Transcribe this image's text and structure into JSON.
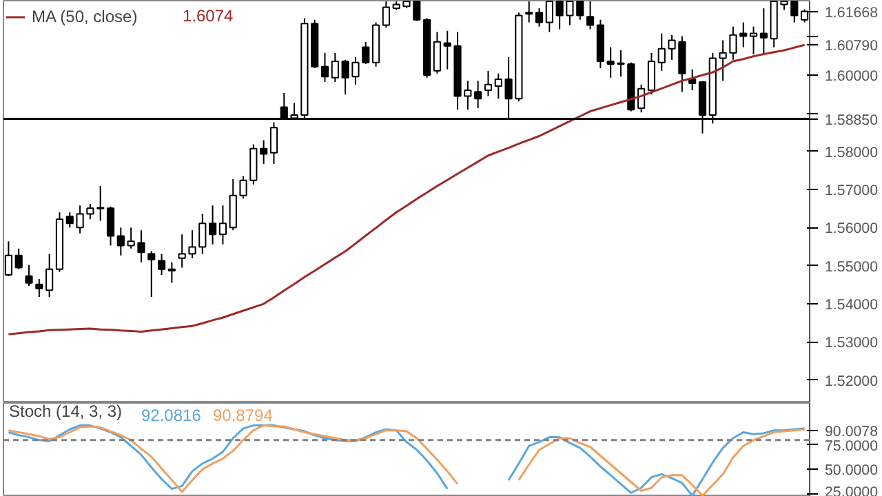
{
  "chart_data": [
    {
      "type": "candlestick",
      "categories": [
        null,
        null,
        null,
        null,
        null,
        null,
        null,
        null,
        null,
        null,
        null,
        null,
        null,
        null,
        null,
        null,
        null,
        null,
        null,
        null,
        null,
        null,
        null,
        null,
        null,
        null,
        null,
        null,
        null,
        null,
        null,
        null,
        null,
        null,
        null,
        null,
        null,
        null,
        null,
        null,
        null,
        null,
        null,
        null,
        null,
        null,
        null,
        null,
        null,
        null,
        null,
        null,
        null,
        null,
        null,
        null,
        null,
        null,
        null,
        null,
        null,
        null,
        null,
        null,
        null,
        null,
        null,
        null,
        null,
        null,
        null,
        null,
        null,
        null,
        null,
        null,
        null,
        null,
        null
      ],
      "ohlc": [
        [
          1.5476,
          1.5564,
          1.5473,
          1.5527
        ],
        [
          1.5527,
          1.5545,
          1.5491,
          1.5495
        ],
        [
          1.5473,
          1.5502,
          1.5447,
          1.5455
        ],
        [
          1.5451,
          1.5465,
          1.5418,
          1.544
        ],
        [
          1.5436,
          1.5531,
          1.5418,
          1.5491
        ],
        [
          1.5491,
          1.564,
          1.5484,
          1.5622
        ],
        [
          1.5629,
          1.564,
          1.56,
          1.5611
        ],
        [
          1.56,
          1.5658,
          1.5585,
          1.5636
        ],
        [
          1.5636,
          1.5662,
          1.5622,
          1.5651
        ],
        [
          1.5652,
          1.5709,
          1.5618,
          1.565
        ],
        [
          1.5651,
          1.5655,
          1.5553,
          1.5578
        ],
        [
          1.5578,
          1.56,
          1.5527,
          1.5553
        ],
        [
          1.5553,
          1.56,
          1.5545,
          1.5564
        ],
        [
          1.556,
          1.5593,
          1.5509,
          1.5535
        ],
        [
          1.5531,
          1.5538,
          1.5418,
          1.5516
        ],
        [
          1.5513,
          1.5531,
          1.5476,
          1.5491
        ],
        [
          1.5491,
          1.5509,
          1.5455,
          1.5487
        ],
        [
          1.552,
          1.5582,
          1.5495,
          1.5531
        ],
        [
          1.5531,
          1.5593,
          1.552,
          1.5549
        ],
        [
          1.5549,
          1.5636,
          1.5531,
          1.5611
        ],
        [
          1.5611,
          1.5658,
          1.5556,
          1.5582
        ],
        [
          1.5582,
          1.5658,
          1.5556,
          1.5611
        ],
        [
          1.56,
          1.5727,
          1.5593,
          1.5684
        ],
        [
          1.5684,
          1.5735,
          1.5676,
          1.5724
        ],
        [
          1.5724,
          1.5818,
          1.5713,
          1.5807
        ],
        [
          1.5807,
          1.5829,
          1.5767,
          1.5793
        ],
        [
          1.5796,
          1.5876,
          1.5767,
          1.5862
        ],
        [
          1.5916,
          1.5953,
          1.5884,
          1.5887
        ],
        [
          1.5887,
          1.5927,
          1.5884,
          1.5895
        ],
        [
          1.5895,
          1.6149,
          1.5884,
          1.6135
        ],
        [
          1.6135,
          1.6145,
          1.6018,
          1.6022
        ],
        [
          1.6022,
          1.6058,
          1.5982,
          1.5996
        ],
        [
          1.5993,
          1.6058,
          1.5982,
          1.6036
        ],
        [
          1.6036,
          1.604,
          1.5949,
          1.5993
        ],
        [
          1.5996,
          1.6047,
          1.5975,
          1.6033
        ],
        [
          1.6073,
          1.6087,
          1.6029,
          1.6033
        ],
        [
          1.6033,
          1.6138,
          1.6022,
          1.6131
        ],
        [
          1.6131,
          1.6193,
          1.6124,
          1.6178
        ],
        [
          1.6175,
          1.6193,
          1.6171,
          1.6185
        ],
        [
          1.618,
          1.6193,
          1.6175,
          1.6193
        ],
        [
          1.6193,
          1.6193,
          1.6142,
          1.6145
        ],
        [
          1.6145,
          1.6149,
          1.5993,
          1.6
        ],
        [
          1.6011,
          1.6113,
          1.6004,
          1.6087
        ],
        [
          1.6084,
          1.6116,
          1.6015,
          1.6076
        ],
        [
          1.6076,
          1.6113,
          1.5909,
          1.5945
        ],
        [
          1.5945,
          1.5985,
          1.5909,
          1.596
        ],
        [
          1.5956,
          1.5985,
          1.5913,
          1.5938
        ],
        [
          1.596,
          1.6011,
          1.5945,
          1.5975
        ],
        [
          1.5971,
          1.6004,
          1.5938,
          1.5989
        ],
        [
          1.5989,
          1.6047,
          1.5884,
          1.5938
        ],
        [
          1.5938,
          1.6164,
          1.5931,
          1.6156
        ],
        [
          1.6164,
          1.6193,
          1.6138,
          1.616
        ],
        [
          1.6164,
          1.6175,
          1.6127,
          1.6138
        ],
        [
          1.6138,
          1.6193,
          1.6113,
          1.6193
        ],
        [
          1.6193,
          1.6193,
          1.612,
          1.6156
        ],
        [
          1.6156,
          1.6193,
          1.6131,
          1.6193
        ],
        [
          1.6193,
          1.6193,
          1.6145,
          1.6156
        ],
        [
          1.6153,
          1.6193,
          1.612,
          1.6131
        ],
        [
          1.6131,
          1.6145,
          1.6018,
          1.6036
        ],
        [
          1.6036,
          1.6073,
          1.5993,
          1.6029
        ],
        [
          1.6029,
          1.6065,
          1.5996,
          1.6031
        ],
        [
          1.6029,
          1.6033,
          1.5905,
          1.5909
        ],
        [
          1.5913,
          1.5975,
          1.5902,
          1.5964
        ],
        [
          1.596,
          1.6058,
          1.5949,
          1.6036
        ],
        [
          1.6033,
          1.6109,
          1.6011,
          1.6069
        ],
        [
          1.6069,
          1.6105,
          1.604,
          1.6091
        ],
        [
          1.6087,
          1.6102,
          1.5956,
          1.6004
        ],
        [
          1.5989,
          1.6015,
          1.596,
          1.5978
        ],
        [
          1.5982,
          1.5982,
          1.5847,
          1.5895
        ],
        [
          1.5895,
          1.6058,
          1.5873,
          1.6044
        ],
        [
          1.6044,
          1.6091,
          1.5985,
          1.6058
        ],
        [
          1.6058,
          1.6127,
          1.604,
          1.6105
        ],
        [
          1.6109,
          1.6138,
          1.6073,
          1.6102
        ],
        [
          1.6102,
          1.6127,
          1.6055,
          1.6109
        ],
        [
          1.6109,
          1.6175,
          1.6055,
          1.6098
        ],
        [
          1.6095,
          1.6193,
          1.6073,
          1.6193
        ],
        [
          1.6185,
          1.6193,
          1.6171,
          1.6193
        ],
        [
          1.6193,
          1.6193,
          1.6138,
          1.6156
        ],
        [
          1.6145,
          1.6172,
          1.6138,
          1.6167
        ]
      ],
      "series": [
        {
          "type": "line",
          "name": "MA (50, close)",
          "color": "#a02828",
          "values": [
            1.532,
            1.5323,
            1.5326,
            1.5328,
            1.5331,
            1.5332,
            1.5333,
            1.5334,
            1.5335,
            1.5333,
            1.5332,
            1.533,
            1.5329,
            1.5327,
            1.533,
            1.5333,
            1.5336,
            1.5339,
            1.5342,
            1.5349,
            1.5357,
            1.5364,
            1.5373,
            1.5382,
            1.5391,
            1.54,
            1.5417,
            1.5435,
            1.5452,
            1.547,
            1.5487,
            1.5504,
            1.5521,
            1.5538,
            1.5558,
            1.5579,
            1.5599,
            1.562,
            1.564,
            1.5657,
            1.5675,
            1.5692,
            1.5709,
            1.5725,
            1.5741,
            1.5757,
            1.5773,
            1.5789,
            1.5799,
            1.5809,
            1.582,
            1.583,
            1.584,
            1.5853,
            1.5866,
            1.5879,
            1.5892,
            1.5905,
            1.5913,
            1.5921,
            1.5929,
            1.5937,
            1.5945,
            1.5955,
            1.5965,
            1.5975,
            1.5985,
            1.5992,
            1.6,
            1.6007,
            1.602,
            1.6036,
            1.6042,
            1.6049,
            1.6055,
            1.606,
            1.6065,
            1.6072,
            1.6079
          ]
        }
      ],
      "ylim": [
        1.514,
        1.6195
      ],
      "yticks": [
        {
          "value": 1.52,
          "label": "1.52000"
        },
        {
          "value": 1.53,
          "label": "1.53000"
        },
        {
          "value": 1.54,
          "label": "1.54000"
        },
        {
          "value": 1.55,
          "label": "1.55000"
        },
        {
          "value": 1.56,
          "label": "1.56000"
        },
        {
          "value": 1.57,
          "label": "1.57000"
        },
        {
          "value": 1.58,
          "label": "1.58000"
        },
        {
          "value": 1.59,
          "label": null
        },
        {
          "value": 1.6,
          "label": "1.60000"
        },
        {
          "value": 1.6079,
          "label": "1.60790"
        },
        {
          "value": 1.61,
          "label": null
        },
        {
          "value": 1.61668,
          "label": "1.61668"
        }
      ],
      "ref_lines": [
        {
          "axis": "y",
          "value": 1.5885,
          "label": "1.58850",
          "color": "#000000"
        }
      ],
      "annotations": [
        "1.6074"
      ],
      "tick_labels": "y",
      "grid": false,
      "legend": "top left"
    },
    {
      "type": "line",
      "title": "Stoch (14, 3, 3)",
      "categories": [
        null,
        null,
        null,
        null,
        null,
        null,
        null,
        null,
        null,
        null,
        null,
        null,
        null,
        null,
        null,
        null,
        null,
        null,
        null,
        null,
        null,
        null,
        null,
        null,
        null,
        null,
        null,
        null,
        null,
        null,
        null,
        null,
        null,
        null,
        null,
        null,
        null,
        null,
        null,
        null,
        null,
        null,
        null,
        null,
        null,
        null,
        null,
        null,
        null,
        null,
        null,
        null,
        null,
        null,
        null,
        null,
        null,
        null,
        null,
        null,
        null,
        null,
        null,
        null,
        null,
        null,
        null,
        null,
        null,
        null,
        null,
        null,
        null,
        null,
        null,
        null,
        null,
        null,
        null
      ],
      "series": [
        {
          "color": "#5aa7dc",
          "values": [
            88,
            85,
            83,
            80,
            79,
            85,
            91,
            95,
            95,
            92,
            88,
            83,
            74,
            65,
            52,
            40,
            30,
            33,
            48,
            56,
            61,
            68,
            82,
            92,
            95,
            95,
            95,
            93,
            91,
            89,
            85,
            82,
            80,
            79,
            79,
            83,
            88,
            91,
            90,
            78,
            70,
            59,
            46,
            30,
            null,
            null,
            null,
            null,
            null,
            39,
            56,
            74,
            78,
            83,
            83,
            77,
            72,
            63,
            53,
            44,
            35,
            26,
            31,
            42,
            45,
            41,
            36,
            23,
            40,
            57,
            72,
            82,
            88,
            86,
            87,
            90,
            90,
            91,
            92
          ]
        },
        {
          "color": "#f0a060",
          "values": [
            90,
            88,
            86,
            84,
            81,
            83,
            88,
            93,
            94,
            93,
            89,
            85,
            80,
            71,
            63,
            51,
            39,
            27,
            39,
            50,
            56,
            61,
            69,
            80,
            90,
            95,
            94,
            94,
            91,
            88,
            86,
            84,
            82,
            80,
            80,
            82,
            86,
            90,
            90,
            89,
            82,
            71,
            60,
            48,
            35,
            null,
            null,
            null,
            null,
            null,
            39,
            55,
            70,
            76,
            82,
            82,
            77,
            73,
            64,
            55,
            46,
            37,
            28,
            31,
            42,
            44,
            44,
            34,
            23,
            34,
            45,
            62,
            74,
            80,
            84,
            88,
            89,
            90,
            91
          ]
        }
      ],
      "ylim": [
        22,
        118
      ],
      "yticks": [
        {
          "value": 25,
          "label": "25.0000"
        },
        {
          "value": 50,
          "label": "50.0000"
        },
        {
          "value": 75,
          "label": "75.0000"
        },
        {
          "value": 90.0078,
          "label": "90.0078"
        }
      ],
      "ref_lines": [
        {
          "axis": "y",
          "value": 80,
          "color": "#808080",
          "line_style": "dashed"
        }
      ],
      "annotations": [
        "92.0816",
        "90.8794"
      ],
      "tick_labels": "y",
      "grid": false
    }
  ]
}
